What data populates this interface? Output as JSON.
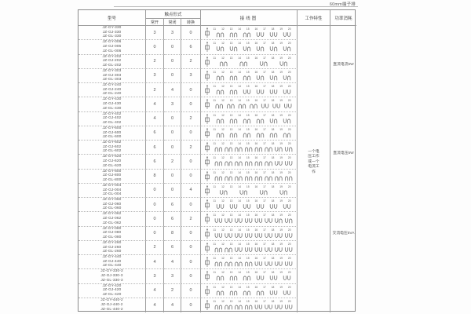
{
  "page": {
    "top_right_label": "60mm端子排"
  },
  "table": {
    "headers": {
      "model": "型号",
      "contact_form": "触点形式",
      "contact_no": "常开",
      "contact_nc": "常闭",
      "contact_co": "转换",
      "wiring": "接线图",
      "working": "工作特性",
      "power": "功率消耗"
    },
    "working_note": "一个电压工作或一个电流工作",
    "power_notes": [
      {
        "text": "直流电流5W"
      },
      {
        "text": "直流电压5W"
      },
      {
        "text": "交流电压5VA"
      }
    ],
    "diagram_terminals": "11 12 13 14 15 16 17 18 19 20",
    "rows": [
      {
        "models": [
          "JZ-GY-330",
          "JZ-GJ-330",
          "JZ-GL-330"
        ],
        "no": 3,
        "nc": 3,
        "co": 0
      },
      {
        "models": [
          "JZ-GY-006",
          "JZ-GJ-006",
          "JZ-GL-006"
        ],
        "no": 0,
        "nc": 0,
        "co": 6
      },
      {
        "models": [
          "JZ-GY-202",
          "JZ-GJ-202",
          "JZ-GL-202"
        ],
        "no": 2,
        "nc": 0,
        "co": 2
      },
      {
        "models": [
          "JZ-GY-303",
          "JZ-GJ-303",
          "JZ-GL-303"
        ],
        "no": 3,
        "nc": 0,
        "co": 3
      },
      {
        "models": [
          "JZ-GY-240",
          "JZ-GJ-240",
          "JZ-GL-240"
        ],
        "no": 2,
        "nc": 4,
        "co": 0
      },
      {
        "models": [
          "JZ-GY-430",
          "JZ-GJ-430",
          "JZ-GL-430"
        ],
        "no": 4,
        "nc": 3,
        "co": 0
      },
      {
        "models": [
          "JZ-GY-402",
          "JZ-GJ-402",
          "JZ-GL-402"
        ],
        "no": 4,
        "nc": 0,
        "co": 2
      },
      {
        "models": [
          "JZ-GY-600",
          "JZ-GJ-600",
          "JZ-GL-600"
        ],
        "no": 6,
        "nc": 0,
        "co": 0
      },
      {
        "models": [
          "JZ-GY-602",
          "JZ-GJ-602",
          "JZ-GL-602"
        ],
        "no": 6,
        "nc": 0,
        "co": 2
      },
      {
        "models": [
          "JZ-GY-620",
          "JZ-GJ-620",
          "JZ-GL-620"
        ],
        "no": 6,
        "nc": 2,
        "co": 0
      },
      {
        "models": [
          "JZ-GY-800",
          "JZ-GJ-800",
          "JZ-GL-800"
        ],
        "no": 8,
        "nc": 0,
        "co": 0
      },
      {
        "models": [
          "JZ-GY-004",
          "JZ-GJ-004",
          "JZ-GL-004"
        ],
        "no": 0,
        "nc": 0,
        "co": 4
      },
      {
        "models": [
          "JZ-GY-060",
          "JZ-GJ-060",
          "JZ-GL-060"
        ],
        "no": 0,
        "nc": 6,
        "co": 0
      },
      {
        "models": [
          "JZ-GY-062",
          "JZ-GJ-062",
          "JZ-GL-062"
        ],
        "no": 0,
        "nc": 6,
        "co": 2
      },
      {
        "models": [
          "JZ-GY-080",
          "JZ-GJ-080",
          "JZ-GL-080"
        ],
        "no": 0,
        "nc": 8,
        "co": 0
      },
      {
        "models": [
          "JZ-GY-260",
          "JZ-GJ-260",
          "JZ-GL-260"
        ],
        "no": 2,
        "nc": 6,
        "co": 0
      },
      {
        "models": [
          "JZ-GY-440",
          "JZ-GJ-440",
          "JZ-GL-440"
        ],
        "no": 4,
        "nc": 4,
        "co": 0
      },
      {
        "models": [
          "JZ-GY-330-3",
          "JZ-GJ-330-3",
          "JZ-GL-330-3"
        ],
        "no": 3,
        "nc": 3,
        "co": 0
      },
      {
        "models": [
          "JZ-GY-420",
          "JZ-GJ-420",
          "JZ-GL-420"
        ],
        "no": 4,
        "nc": 2,
        "co": 0
      },
      {
        "models": [
          "JZ-GY-440-2",
          "JZ-GJ-440-2",
          "JZ-GL-440-2"
        ],
        "no": 4,
        "nc": 4,
        "co": 0
      }
    ]
  }
}
